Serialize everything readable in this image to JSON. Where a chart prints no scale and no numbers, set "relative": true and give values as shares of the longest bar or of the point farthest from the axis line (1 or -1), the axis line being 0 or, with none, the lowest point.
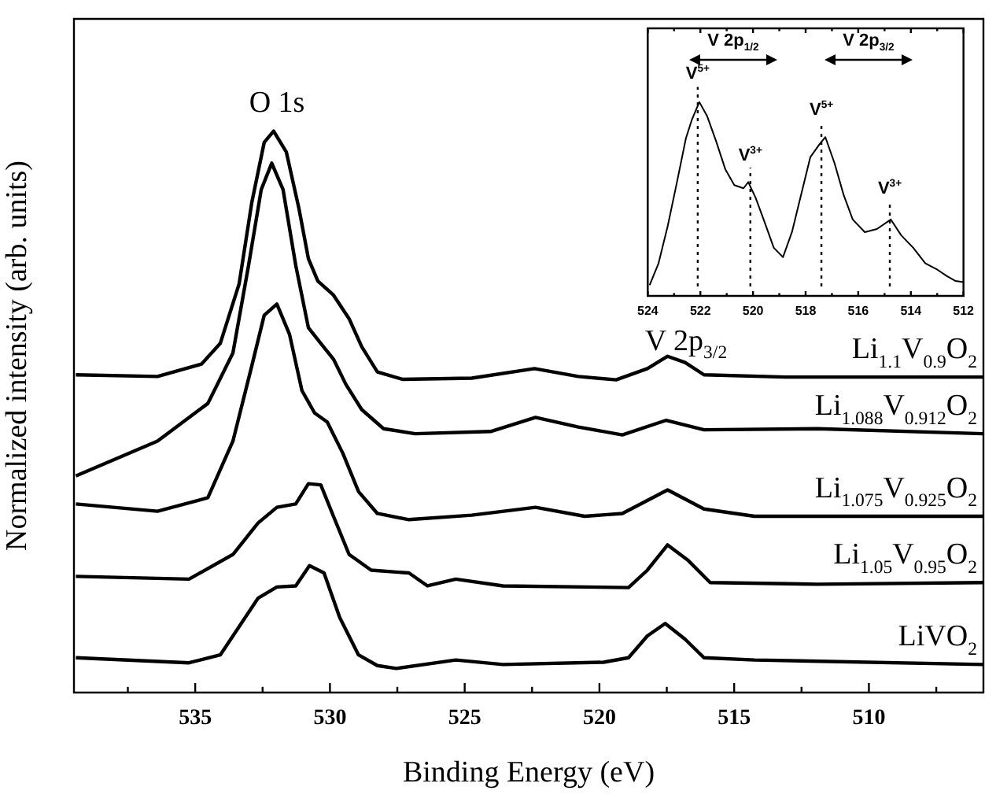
{
  "chart_data": [
    {
      "type": "line",
      "relative": true,
      "xlabel": "Binding Energy (eV)",
      "ylabel": "Normalized intensity (arb. units)",
      "xlim": [
        539.5,
        505.75
      ],
      "xticks": [
        {
          "value": 537.5,
          "label": null
        },
        535,
        {
          "value": 532.5,
          "label": null
        },
        530,
        {
          "value": 527.5,
          "label": null
        },
        525,
        {
          "value": 522.5,
          "label": null
        },
        520,
        {
          "value": 517.5,
          "label": null
        },
        515,
        {
          "value": 512.5,
          "label": null
        },
        510,
        {
          "value": 507.5,
          "label": null
        }
      ],
      "grid": false,
      "legend": false,
      "marker": "none",
      "line_style": "solid",
      "annotations": [
        "O 1s",
        "V 2p$_{3/2}$"
      ],
      "series": [
        {
          "name": "Li$_{1.1}$V$_{0.9}$O$_{2}$",
          "color": "#000000",
          "x": [
            539.43,
            536.4,
            534.77,
            534.07,
            533.37,
            532.9,
            532.44,
            532.09,
            531.62,
            531.15,
            530.8,
            530.45,
            529.87,
            529.29,
            528.82,
            528.24,
            527.31,
            524.74,
            522.41,
            520.78,
            519.38,
            518.22,
            517.47,
            516.82,
            516.12,
            513.09,
            505.75
          ],
          "values": [
            0.566,
            0.563,
            0.585,
            0.622,
            0.728,
            0.873,
            0.98,
            1.0,
            0.963,
            0.862,
            0.773,
            0.733,
            0.708,
            0.666,
            0.616,
            0.571,
            0.558,
            0.56,
            0.577,
            0.563,
            0.557,
            0.577,
            0.599,
            0.588,
            0.566,
            0.562,
            0.562
          ]
        },
        {
          "name": "Li$_{1.088}$V$_{0.912}$O$_{2}$",
          "color": "#000000",
          "x": [
            539.43,
            536.4,
            534.53,
            533.6,
            533.02,
            532.55,
            532.16,
            531.74,
            531.27,
            530.8,
            530.34,
            529.87,
            529.41,
            528.82,
            528.01,
            526.84,
            524.04,
            522.37,
            520.78,
            519.15,
            517.52,
            516.12,
            511.92,
            505.75
          ],
          "values": [
            0.386,
            0.448,
            0.515,
            0.605,
            0.761,
            0.896,
            0.943,
            0.896,
            0.761,
            0.65,
            0.622,
            0.594,
            0.549,
            0.504,
            0.47,
            0.461,
            0.465,
            0.49,
            0.473,
            0.459,
            0.485,
            0.468,
            0.47,
            0.461
          ]
        },
        {
          "name": "Li$_{1.075}$V$_{0.925}$O$_{2}$",
          "color": "#000000",
          "x": [
            539.43,
            536.4,
            534.53,
            533.6,
            532.9,
            532.44,
            531.97,
            531.5,
            531.04,
            530.57,
            530.1,
            529.52,
            528.94,
            528.24,
            527.07,
            524.74,
            522.37,
            520.55,
            519.15,
            517.47,
            516.12,
            514.25,
            505.75
          ],
          "values": [
            0.336,
            0.323,
            0.347,
            0.448,
            0.582,
            0.672,
            0.692,
            0.638,
            0.538,
            0.498,
            0.482,
            0.426,
            0.358,
            0.319,
            0.308,
            0.316,
            0.33,
            0.314,
            0.319,
            0.361,
            0.327,
            0.314,
            0.314
          ]
        },
        {
          "name": "Li$_{1.05}$V$_{0.95}$O$_{2}$",
          "color": "#000000",
          "x": [
            539.43,
            535.23,
            533.6,
            532.67,
            531.97,
            531.27,
            530.8,
            530.34,
            529.87,
            529.29,
            528.47,
            527.07,
            526.38,
            525.33,
            523.58,
            518.92,
            518.22,
            517.47,
            516.7,
            515.89,
            511.92,
            505.75
          ],
          "values": [
            0.207,
            0.202,
            0.246,
            0.302,
            0.33,
            0.336,
            0.372,
            0.37,
            0.314,
            0.246,
            0.218,
            0.213,
            0.19,
            0.202,
            0.19,
            0.187,
            0.218,
            0.263,
            0.235,
            0.196,
            0.193,
            0.196
          ]
        },
        {
          "name": "LiVO$_{2}$",
          "color": "#000000",
          "x": [
            539.43,
            535.23,
            534.07,
            532.67,
            531.97,
            531.27,
            530.76,
            530.22,
            529.64,
            528.94,
            528.24,
            527.54,
            525.33,
            523.58,
            519.85,
            518.92,
            518.22,
            517.56,
            516.82,
            516.12,
            514.25,
            505.75
          ],
          "values": [
            0.062,
            0.053,
            0.067,
            0.168,
            0.188,
            0.19,
            0.226,
            0.213,
            0.134,
            0.067,
            0.048,
            0.043,
            0.058,
            0.05,
            0.054,
            0.062,
            0.101,
            0.123,
            0.095,
            0.062,
            0.058,
            0.05
          ]
        }
      ]
    },
    {
      "type": "line",
      "relative": true,
      "xlim": [
        524,
        512
      ],
      "xticks": [
        524,
        {
          "value": 523,
          "label": null
        },
        522,
        {
          "value": 521,
          "label": null
        },
        520,
        {
          "value": 519,
          "label": null
        },
        518,
        {
          "value": 517,
          "label": null
        },
        516,
        {
          "value": 515,
          "label": null
        },
        514,
        {
          "value": 513,
          "label": null
        },
        512
      ],
      "grid": false,
      "legend": false,
      "marker": "none",
      "line_style": "solid",
      "annotations": [
        "V 2p$_{1/2}$",
        "V 2p$_{3/2}$"
      ],
      "ref_lines": [
        {
          "axis": "x",
          "value": 522.1,
          "label": "V$^{5+}$",
          "line_style": "dotted"
        },
        {
          "axis": "x",
          "value": 520.1,
          "label": "V$^{3+}$",
          "line_style": "dotted"
        },
        {
          "axis": "x",
          "value": 517.4,
          "label": "V$^{5+}$",
          "line_style": "dotted"
        },
        {
          "axis": "x",
          "value": 514.8,
          "label": "V$^{3+}$",
          "line_style": "dotted"
        }
      ],
      "series": [
        {
          "color": "#000000",
          "x": [
            523.93,
            523.59,
            523.24,
            522.89,
            522.55,
            522.32,
            522.04,
            521.74,
            521.4,
            521.05,
            520.71,
            520.36,
            520.18,
            519.9,
            519.55,
            519.21,
            518.86,
            518.52,
            518.17,
            517.82,
            517.48,
            517.25,
            516.9,
            516.56,
            516.21,
            515.75,
            515.29,
            514.76,
            514.37,
            513.91,
            513.45,
            512.99,
            512.64,
            512.3,
            512.0
          ],
          "values": [
            0.055,
            0.168,
            0.361,
            0.587,
            0.813,
            0.91,
            1.0,
            0.926,
            0.797,
            0.652,
            0.571,
            0.555,
            0.587,
            0.506,
            0.377,
            0.248,
            0.2,
            0.329,
            0.523,
            0.716,
            0.781,
            0.819,
            0.684,
            0.523,
            0.394,
            0.329,
            0.345,
            0.394,
            0.313,
            0.248,
            0.168,
            0.135,
            0.103,
            0.077,
            0.071
          ]
        }
      ]
    }
  ]
}
